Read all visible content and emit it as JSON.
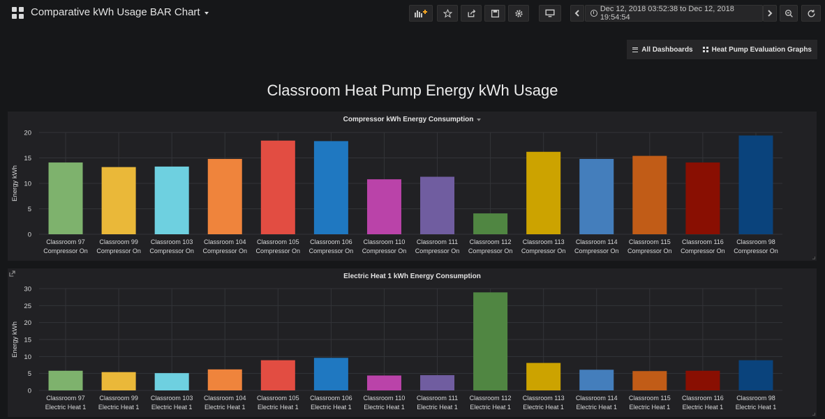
{
  "header": {
    "title": "Comparative kWh Usage BAR Chart",
    "time_range": "Dec 12, 2018 03:52:38 to Dec 12, 2018 19:54:54"
  },
  "dash_links": {
    "all_dashboards": "All Dashboards",
    "heat_pump": "Heat Pump Evaluation Graphs"
  },
  "text_panel": {
    "heading": "Classroom Heat Pump Energy kWh Usage"
  },
  "panels": [
    {
      "title": "Compressor kWh Energy Consumption"
    },
    {
      "title": "Electric Heat 1 kWh Energy Consumption"
    }
  ],
  "chart_data": [
    {
      "type": "bar",
      "title": "Compressor kWh Energy Consumption",
      "ylabel": "Energy kWh",
      "ylim": [
        0,
        20
      ],
      "yticks": [
        0,
        5,
        10,
        15,
        20
      ],
      "grid": true,
      "categories": [
        [
          "Classroom 97",
          "Compressor On"
        ],
        [
          "Classroom 99",
          "Compressor On"
        ],
        [
          "Classroom 103",
          "Compressor On"
        ],
        [
          "Classroom 104",
          "Compressor On"
        ],
        [
          "Classroom 105",
          "Compressor On"
        ],
        [
          "Classroom 106",
          "Compressor On"
        ],
        [
          "Classroom 110",
          "Compressor On"
        ],
        [
          "Classroom 111",
          "Compressor On"
        ],
        [
          "Classroom 112",
          "Compressor On"
        ],
        [
          "Classroom 113",
          "Compressor On"
        ],
        [
          "Classroom 114",
          "Compressor On"
        ],
        [
          "Classroom 115",
          "Compressor On"
        ],
        [
          "Classroom 116",
          "Compressor On"
        ],
        [
          "Classroom 98",
          "Compressor On"
        ]
      ],
      "values": [
        14.1,
        13.2,
        13.3,
        14.8,
        18.4,
        18.3,
        10.8,
        11.3,
        4.1,
        16.2,
        14.8,
        15.4,
        14.1,
        19.4
      ],
      "colors": [
        "#7eb26d",
        "#eab839",
        "#6ed0e0",
        "#ef843c",
        "#e24d42",
        "#1f78c1",
        "#ba43a9",
        "#705da0",
        "#508642",
        "#cca300",
        "#447ebc",
        "#c15c17",
        "#890f02",
        "#0a437c"
      ]
    },
    {
      "type": "bar",
      "title": "Electric Heat 1 kWh Energy Consumption",
      "ylabel": "Energy kWh",
      "ylim": [
        0,
        30
      ],
      "yticks": [
        0,
        5,
        10,
        15,
        20,
        25,
        30
      ],
      "grid": true,
      "categories": [
        [
          "Classroom 97",
          "Electric Heat 1"
        ],
        [
          "Classroom 99",
          "Electric Heat 1"
        ],
        [
          "Classroom 103",
          "Electric Heat 1"
        ],
        [
          "Classroom 104",
          "Electric Heat 1"
        ],
        [
          "Classroom 105",
          "Electric Heat 1"
        ],
        [
          "Classroom 106",
          "Electric Heat 1"
        ],
        [
          "Classroom 110",
          "Electric Heat 1"
        ],
        [
          "Classroom 111",
          "Electric Heat 1"
        ],
        [
          "Classroom 112",
          "Electric Heat 1"
        ],
        [
          "Classroom 113",
          "Electric Heat 1"
        ],
        [
          "Classroom 114",
          "Electric Heat 1"
        ],
        [
          "Classroom 115",
          "Electric Heat 1"
        ],
        [
          "Classroom 116",
          "Electric Heat 1"
        ],
        [
          "Classroom 98",
          "Electric Heat 1"
        ]
      ],
      "values": [
        5.8,
        5.4,
        5.1,
        6.2,
        8.9,
        9.6,
        4.4,
        4.5,
        28.9,
        8.1,
        6.1,
        5.7,
        5.8,
        8.9
      ],
      "colors": [
        "#7eb26d",
        "#eab839",
        "#6ed0e0",
        "#ef843c",
        "#e24d42",
        "#1f78c1",
        "#ba43a9",
        "#705da0",
        "#508642",
        "#cca300",
        "#447ebc",
        "#c15c17",
        "#890f02",
        "#0a437c"
      ]
    }
  ]
}
